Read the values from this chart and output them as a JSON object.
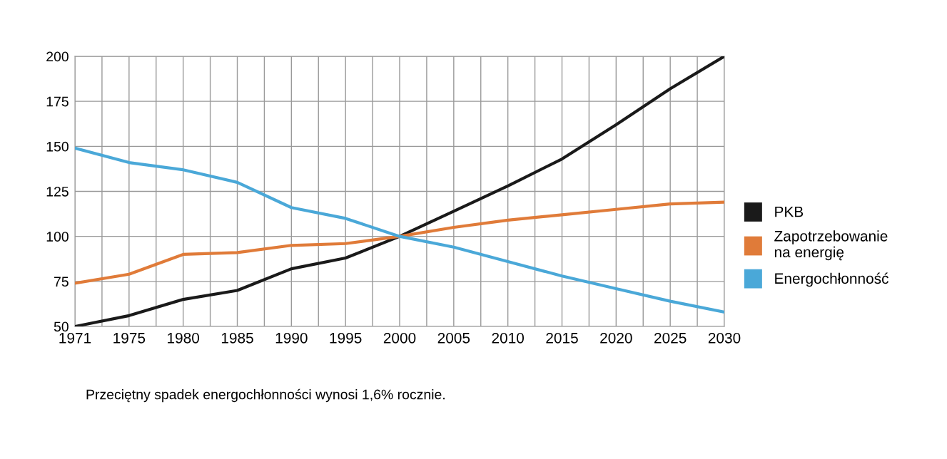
{
  "chart_data": {
    "type": "line",
    "categories": [
      "1971",
      "1975",
      "1980",
      "1985",
      "1990",
      "1995",
      "2000",
      "2005",
      "2010",
      "2015",
      "2020",
      "2025",
      "2030"
    ],
    "series": [
      {
        "name": "PKB",
        "color": "#1a1a1a",
        "values": [
          50,
          56,
          65,
          70,
          82,
          88,
          100,
          114,
          128,
          143,
          162,
          182,
          200
        ]
      },
      {
        "name": "Zapotrzebowanie\nna energię",
        "color": "#e07b39",
        "values": [
          74,
          79,
          90,
          91,
          95,
          96,
          100,
          105,
          109,
          112,
          115,
          118,
          119
        ]
      },
      {
        "name": "Energochłonność",
        "color": "#4aa8d8",
        "values": [
          149,
          141,
          137,
          130,
          116,
          110,
          100,
          94,
          86,
          78,
          71,
          64,
          58
        ]
      }
    ],
    "ylim": [
      50,
      200
    ],
    "yticks": [
      50,
      75,
      100,
      125,
      150,
      175,
      200
    ],
    "grid": true,
    "legend": "right",
    "marker": "none",
    "line_style": "solid",
    "annotations": [
      "Przeciętny spadek energochłonności wynosi 1,6% rocznie."
    ]
  }
}
